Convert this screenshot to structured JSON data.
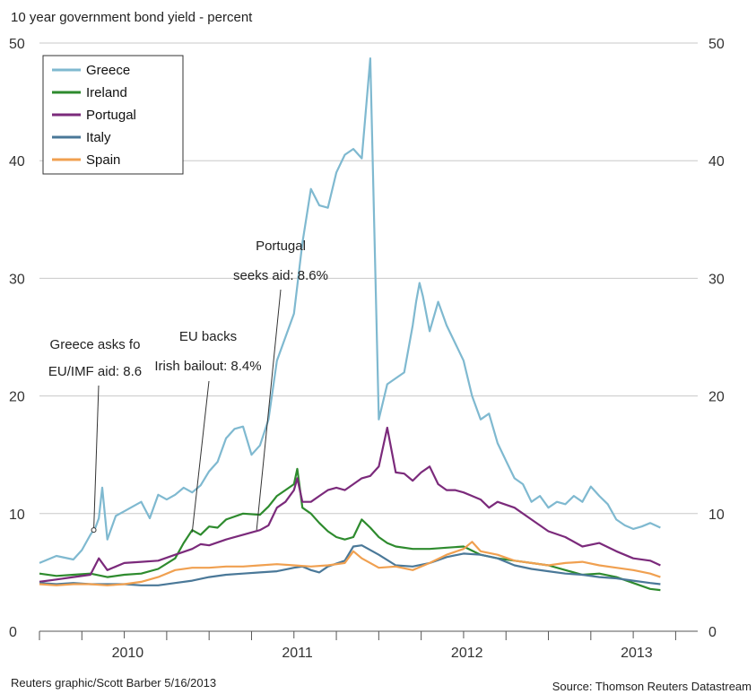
{
  "chart_data": {
    "type": "line",
    "title": "10 year government bond yield - percent",
    "ylim": [
      0,
      50
    ],
    "y_ticks": [
      0,
      10,
      20,
      30,
      40,
      50
    ],
    "x_ticks": [
      "2010",
      "2011",
      "2012",
      "2013"
    ],
    "x_tick_values": [
      2010.0,
      2011.0,
      2012.0,
      2013.0
    ],
    "xlim": [
      2009.5,
      2013.38
    ],
    "legend_position": "top-left",
    "grid": "horizontal",
    "series": [
      {
        "name": "Greece",
        "color": "#7fb9d0",
        "x": [
          2009.5,
          2009.6,
          2009.7,
          2009.75,
          2009.8,
          2009.83,
          2009.85,
          2009.87,
          2009.9,
          2009.95,
          2010.0,
          2010.05,
          2010.1,
          2010.15,
          2010.2,
          2010.25,
          2010.3,
          2010.35,
          2010.4,
          2010.45,
          2010.5,
          2010.55,
          2010.6,
          2010.65,
          2010.7,
          2010.75,
          2010.8,
          2010.85,
          2010.9,
          2010.95,
          2011.0,
          2011.05,
          2011.1,
          2011.15,
          2011.2,
          2011.25,
          2011.3,
          2011.35,
          2011.4,
          2011.45,
          2011.5,
          2011.55,
          2011.6,
          2011.65,
          2011.7,
          2011.72,
          2011.74,
          2011.76,
          2011.8,
          2011.85,
          2011.9,
          2011.95,
          2012.0,
          2012.05,
          2012.1,
          2012.15,
          2012.2,
          2012.25,
          2012.3,
          2012.35,
          2012.4,
          2012.45,
          2012.5,
          2012.55,
          2012.6,
          2012.65,
          2012.7,
          2012.75,
          2012.8,
          2012.85,
          2012.9,
          2012.95,
          2013.0,
          2013.05,
          2013.1,
          2013.13,
          2013.16
        ],
        "y": [
          5.8,
          6.4,
          6.1,
          6.9,
          8.2,
          8.8,
          9.6,
          12.2,
          7.8,
          9.8,
          10.2,
          10.6,
          11.0,
          9.6,
          11.6,
          11.2,
          11.6,
          12.2,
          11.8,
          12.4,
          13.6,
          14.4,
          16.4,
          17.2,
          17.4,
          15.0,
          15.8,
          18.0,
          23.0,
          25.0,
          27.0,
          33.0,
          37.6,
          36.2,
          36.0,
          39.0,
          40.5,
          41.0,
          40.2,
          48.7,
          18.0,
          21.0,
          21.5,
          22.0,
          26.0,
          28.0,
          29.6,
          28.5,
          25.5,
          28.0,
          26.0,
          24.5,
          23.0,
          20.0,
          18.0,
          18.5,
          16.0,
          14.5,
          13.0,
          12.5,
          11.0,
          11.5,
          10.5,
          11.0,
          10.8,
          11.5,
          11.0,
          12.3,
          11.5,
          10.8,
          9.5,
          9.0,
          8.7,
          8.9,
          9.2,
          9.0,
          8.8
        ]
      },
      {
        "name": "Ireland",
        "color": "#2e8b2e",
        "x": [
          2009.5,
          2009.6,
          2009.7,
          2009.8,
          2009.9,
          2010.0,
          2010.1,
          2010.2,
          2010.3,
          2010.35,
          2010.4,
          2010.45,
          2010.5,
          2010.55,
          2010.6,
          2010.7,
          2010.8,
          2010.85,
          2010.9,
          2010.95,
          2011.0,
          2011.02,
          2011.05,
          2011.1,
          2011.15,
          2011.2,
          2011.25,
          2011.3,
          2011.35,
          2011.4,
          2011.45,
          2011.5,
          2011.55,
          2011.6,
          2011.7,
          2011.8,
          2011.9,
          2012.0,
          2012.1,
          2012.2,
          2012.3,
          2012.4,
          2012.5,
          2012.6,
          2012.7,
          2012.8,
          2012.9,
          2013.0,
          2013.1,
          2013.16
        ],
        "y": [
          4.9,
          4.7,
          4.8,
          4.9,
          4.6,
          4.8,
          4.9,
          5.3,
          6.2,
          7.5,
          8.6,
          8.2,
          8.9,
          8.8,
          9.5,
          10.0,
          9.9,
          10.6,
          11.5,
          12.0,
          12.5,
          13.8,
          10.5,
          10.0,
          9.2,
          8.5,
          8.0,
          7.8,
          8.0,
          9.5,
          8.8,
          8.0,
          7.5,
          7.2,
          7.0,
          7.0,
          7.1,
          7.2,
          6.5,
          6.2,
          6.0,
          5.8,
          5.6,
          5.2,
          4.8,
          4.9,
          4.6,
          4.1,
          3.6,
          3.5
        ]
      },
      {
        "name": "Portugal",
        "color": "#7b2a7b",
        "x": [
          2009.5,
          2009.6,
          2009.7,
          2009.8,
          2009.85,
          2009.9,
          2010.0,
          2010.1,
          2010.2,
          2010.3,
          2010.4,
          2010.45,
          2010.5,
          2010.6,
          2010.7,
          2010.8,
          2010.85,
          2010.9,
          2010.95,
          2011.0,
          2011.02,
          2011.05,
          2011.1,
          2011.15,
          2011.2,
          2011.25,
          2011.3,
          2011.35,
          2011.4,
          2011.45,
          2011.5,
          2011.55,
          2011.6,
          2011.65,
          2011.7,
          2011.75,
          2011.8,
          2011.85,
          2011.9,
          2011.95,
          2012.0,
          2012.05,
          2012.1,
          2012.15,
          2012.2,
          2012.3,
          2012.4,
          2012.5,
          2012.6,
          2012.7,
          2012.8,
          2012.9,
          2013.0,
          2013.1,
          2013.16
        ],
        "y": [
          4.2,
          4.4,
          4.6,
          4.8,
          6.2,
          5.2,
          5.8,
          5.9,
          6.0,
          6.5,
          7.0,
          7.4,
          7.3,
          7.8,
          8.2,
          8.6,
          9.0,
          10.5,
          11.0,
          12.0,
          13.0,
          11.0,
          11.0,
          11.5,
          12.0,
          12.2,
          12.0,
          12.5,
          13.0,
          13.2,
          14.0,
          17.3,
          13.5,
          13.4,
          12.8,
          13.5,
          14.0,
          12.5,
          12.0,
          12.0,
          11.8,
          11.5,
          11.2,
          10.5,
          11.0,
          10.5,
          9.5,
          8.5,
          8.0,
          7.2,
          7.5,
          6.8,
          6.2,
          6.0,
          5.6
        ]
      },
      {
        "name": "Italy",
        "color": "#4a7898",
        "x": [
          2009.5,
          2009.6,
          2009.7,
          2009.8,
          2009.9,
          2010.0,
          2010.1,
          2010.2,
          2010.3,
          2010.4,
          2010.5,
          2010.6,
          2010.7,
          2010.8,
          2010.9,
          2011.0,
          2011.05,
          2011.1,
          2011.15,
          2011.2,
          2011.3,
          2011.35,
          2011.4,
          2011.5,
          2011.6,
          2011.7,
          2011.8,
          2011.9,
          2012.0,
          2012.1,
          2012.2,
          2012.3,
          2012.4,
          2012.5,
          2012.6,
          2012.7,
          2012.8,
          2012.9,
          2013.0,
          2013.1,
          2013.16
        ],
        "y": [
          4.1,
          4.0,
          4.1,
          4.0,
          4.0,
          4.0,
          3.9,
          3.9,
          4.1,
          4.3,
          4.6,
          4.8,
          4.9,
          5.0,
          5.1,
          5.4,
          5.5,
          5.2,
          5.0,
          5.5,
          6.0,
          7.2,
          7.3,
          6.5,
          5.6,
          5.5,
          5.8,
          6.3,
          6.6,
          6.5,
          6.2,
          5.6,
          5.3,
          5.1,
          4.9,
          4.8,
          4.6,
          4.5,
          4.3,
          4.1,
          4.0
        ]
      },
      {
        "name": "Spain",
        "color": "#f0a050",
        "x": [
          2009.5,
          2009.6,
          2009.7,
          2009.8,
          2009.9,
          2010.0,
          2010.1,
          2010.2,
          2010.3,
          2010.4,
          2010.5,
          2010.6,
          2010.7,
          2010.8,
          2010.9,
          2011.0,
          2011.1,
          2011.2,
          2011.3,
          2011.35,
          2011.4,
          2011.5,
          2011.6,
          2011.7,
          2011.8,
          2011.9,
          2012.0,
          2012.05,
          2012.1,
          2012.2,
          2012.3,
          2012.4,
          2012.5,
          2012.6,
          2012.7,
          2012.8,
          2012.9,
          2013.0,
          2013.1,
          2013.16
        ],
        "y": [
          4.0,
          3.9,
          4.0,
          4.0,
          3.9,
          4.0,
          4.2,
          4.6,
          5.2,
          5.4,
          5.4,
          5.5,
          5.5,
          5.6,
          5.7,
          5.6,
          5.5,
          5.6,
          5.8,
          6.8,
          6.2,
          5.4,
          5.5,
          5.2,
          5.8,
          6.5,
          7.0,
          7.6,
          6.8,
          6.5,
          6.0,
          5.8,
          5.6,
          5.8,
          5.9,
          5.6,
          5.4,
          5.2,
          4.9,
          4.6
        ]
      }
    ],
    "annotations": [
      {
        "lines": [
          "Greece asks fo",
          "EU/IMF aid: 8.6"
        ],
        "x": 2009.82,
        "y": 8.6
      },
      {
        "lines": [
          "EU backs",
          "Irish bailout: 8.4%"
        ],
        "x": 2010.4,
        "y": 8.4
      },
      {
        "lines": [
          "Portugal",
          "seeks aid: 8.6%"
        ],
        "x": 2010.78,
        "y": 8.6
      }
    ]
  },
  "footer": {
    "credit": "Reuters graphic/Scott Barber 5/16/2013",
    "source": "Source: Thomson Reuters Datastream"
  }
}
